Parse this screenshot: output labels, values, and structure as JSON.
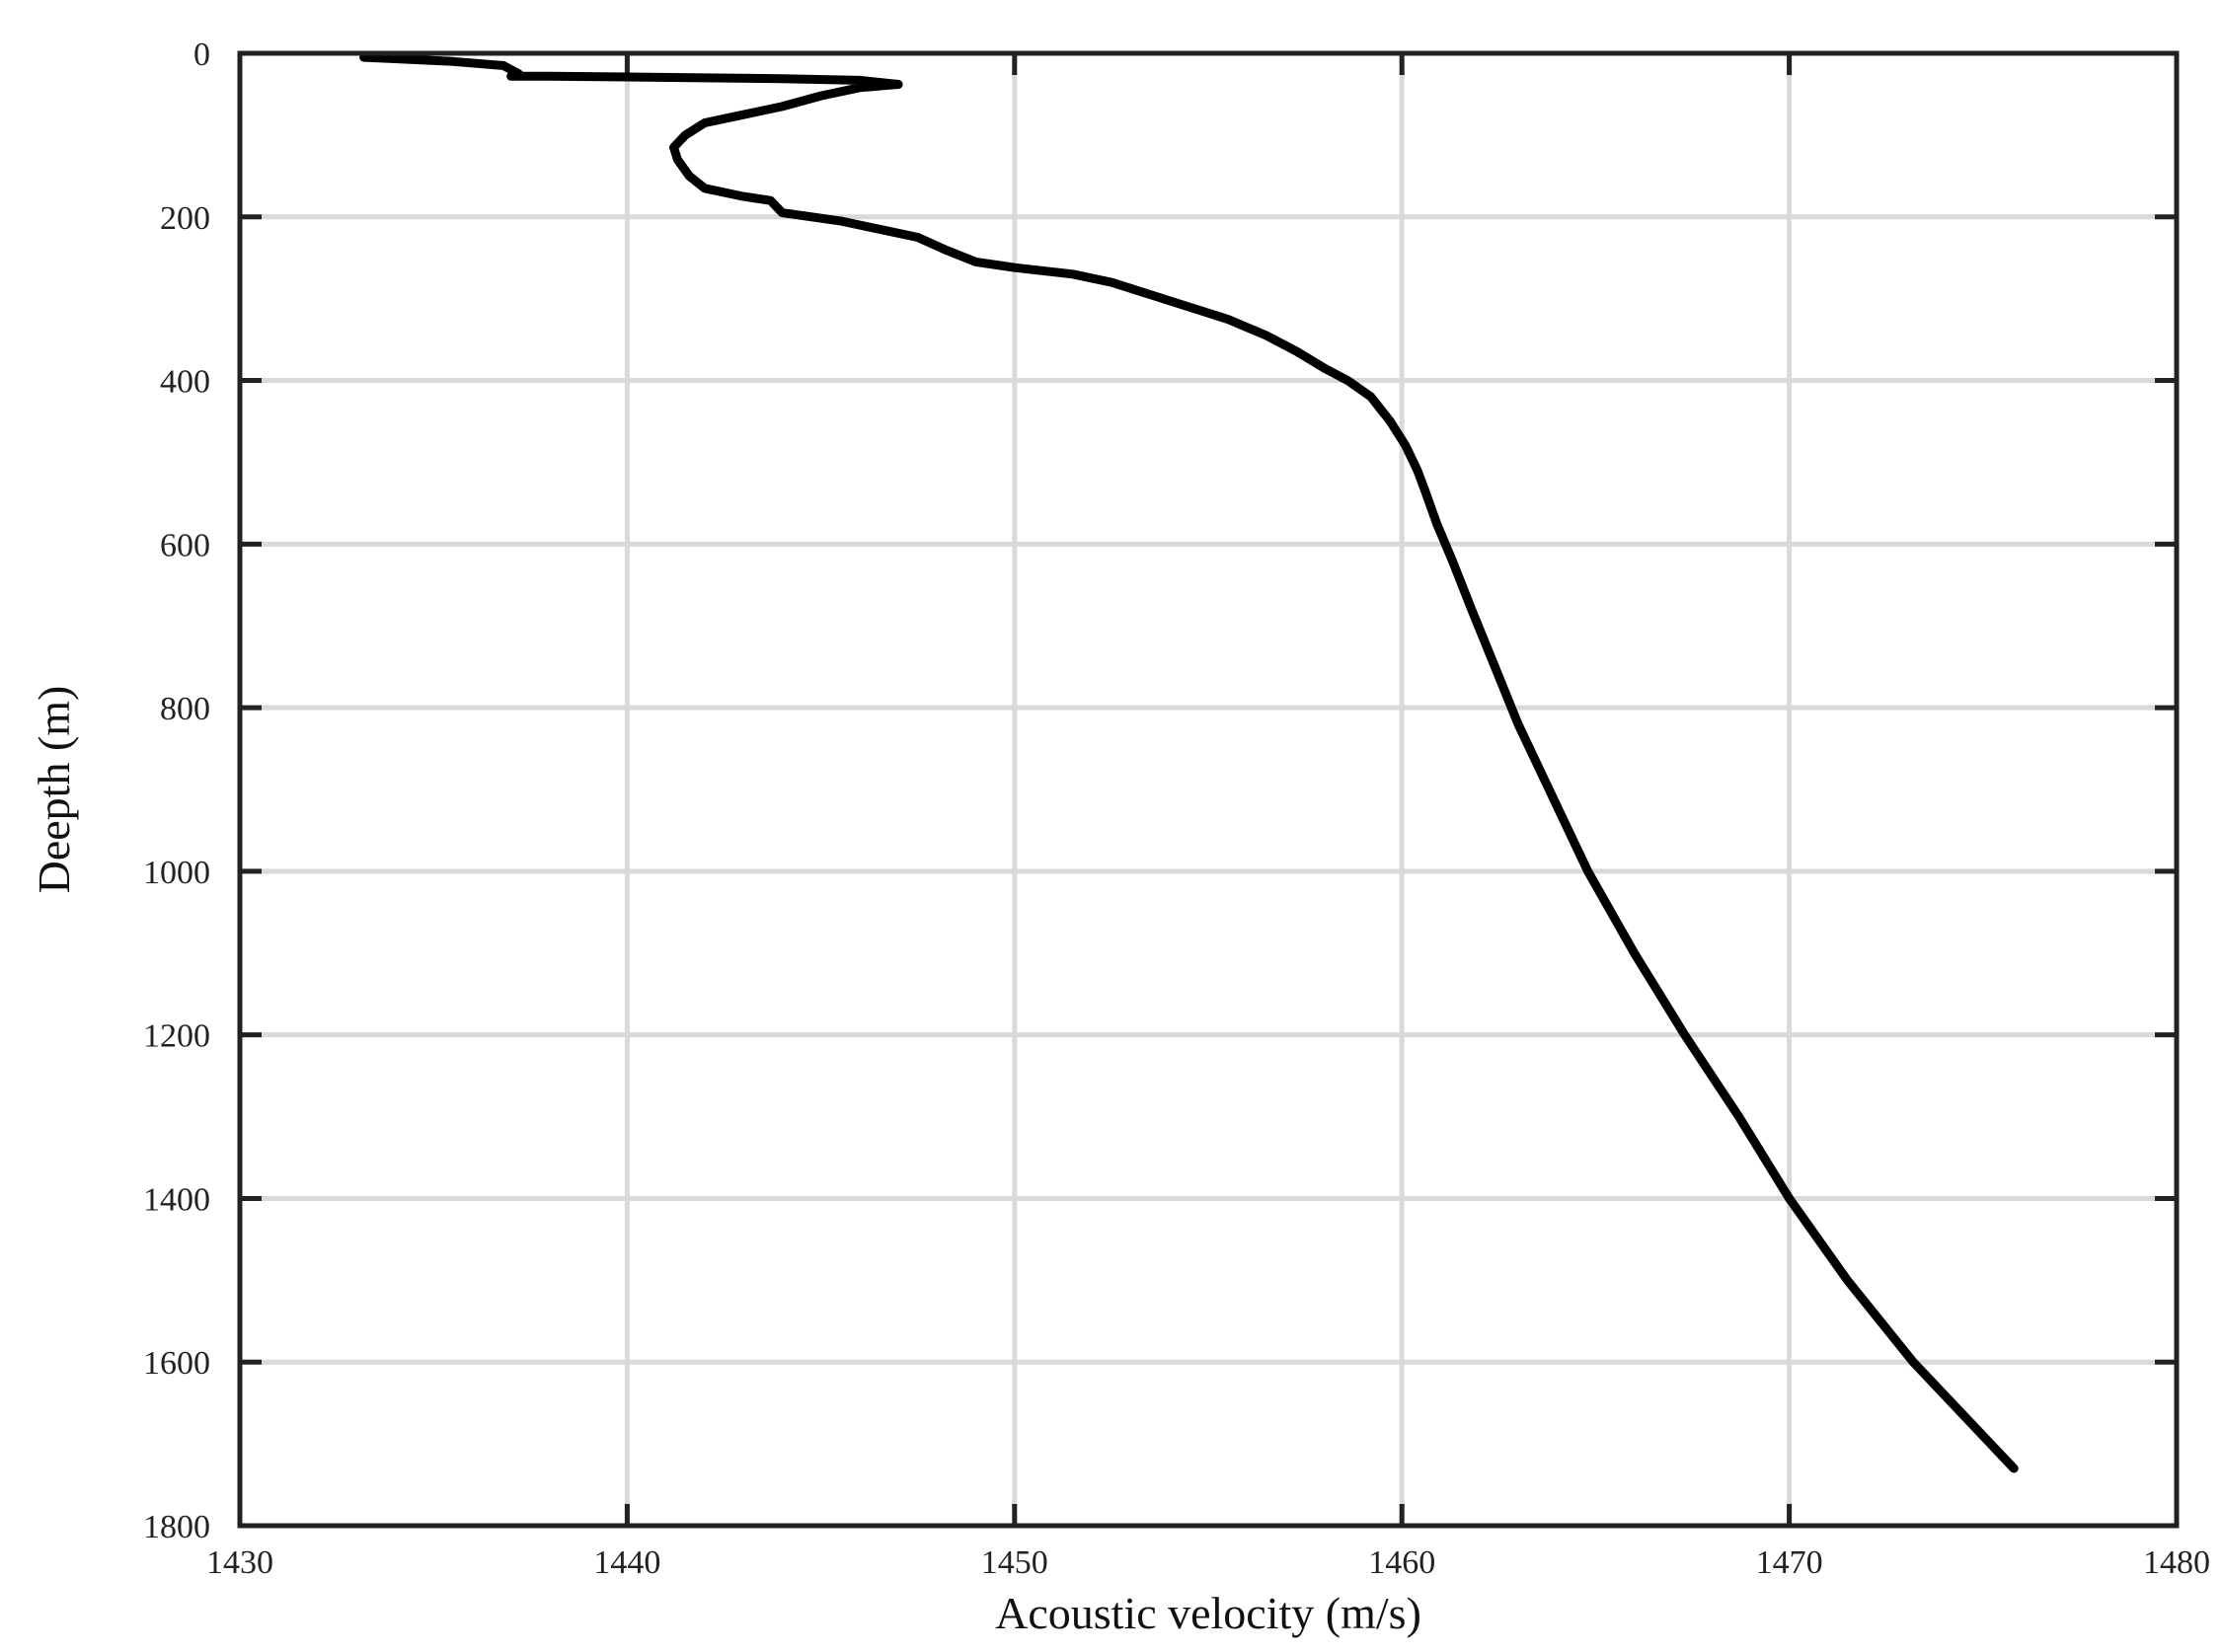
{
  "chart_data": {
    "type": "line",
    "title": "",
    "xlabel": "Acoustic velocity (m/s)",
    "ylabel": "Deepth (m)",
    "xlim": [
      1430,
      1480
    ],
    "ylim": [
      0,
      1800
    ],
    "y_inverted": true,
    "grid": true,
    "legend": "none",
    "x_ticks": [
      "1430",
      "1440",
      "1450",
      "1460",
      "1470",
      "1480"
    ],
    "y_ticks": [
      "0",
      "200",
      "400",
      "600",
      "800",
      "1000",
      "1200",
      "1400",
      "1600",
      "1800"
    ],
    "colors": {
      "line": "#000000",
      "grid": "#d9d9d9",
      "frame": "#222222"
    },
    "series": [
      {
        "x": [
          1433.2,
          1435.5,
          1436.8,
          1437.2,
          1437.0,
          1438.0,
          1440.0,
          1442.0,
          1444.0,
          1446.0,
          1447.0,
          1446.0,
          1445.0,
          1444.0,
          1443.0,
          1442.0,
          1441.5,
          1441.2,
          1441.3,
          1441.6,
          1442.0,
          1443.0,
          1443.7,
          1444.0,
          1445.5,
          1446.5,
          1447.5,
          1448.2,
          1449.0,
          1450.0,
          1451.5,
          1452.5,
          1453.5,
          1454.5,
          1455.5,
          1456.5,
          1457.3,
          1458.0,
          1458.6,
          1459.2,
          1459.7,
          1460.1,
          1460.4,
          1460.6,
          1460.9,
          1461.3,
          1461.8,
          1462.4,
          1463.0,
          1463.8,
          1464.8,
          1466.0,
          1467.3,
          1468.7,
          1470.0,
          1471.5,
          1473.2,
          1475.8
        ],
        "y": [
          5,
          10,
          15,
          25,
          28,
          28,
          29,
          30,
          31,
          33,
          38,
          42,
          52,
          65,
          75,
          85,
          100,
          115,
          130,
          150,
          165,
          175,
          180,
          195,
          205,
          215,
          225,
          240,
          255,
          262,
          270,
          280,
          295,
          310,
          325,
          345,
          365,
          385,
          400,
          420,
          450,
          480,
          510,
          535,
          575,
          620,
          680,
          750,
          820,
          900,
          1000,
          1100,
          1200,
          1300,
          1400,
          1500,
          1600,
          1730
        ]
      }
    ]
  }
}
